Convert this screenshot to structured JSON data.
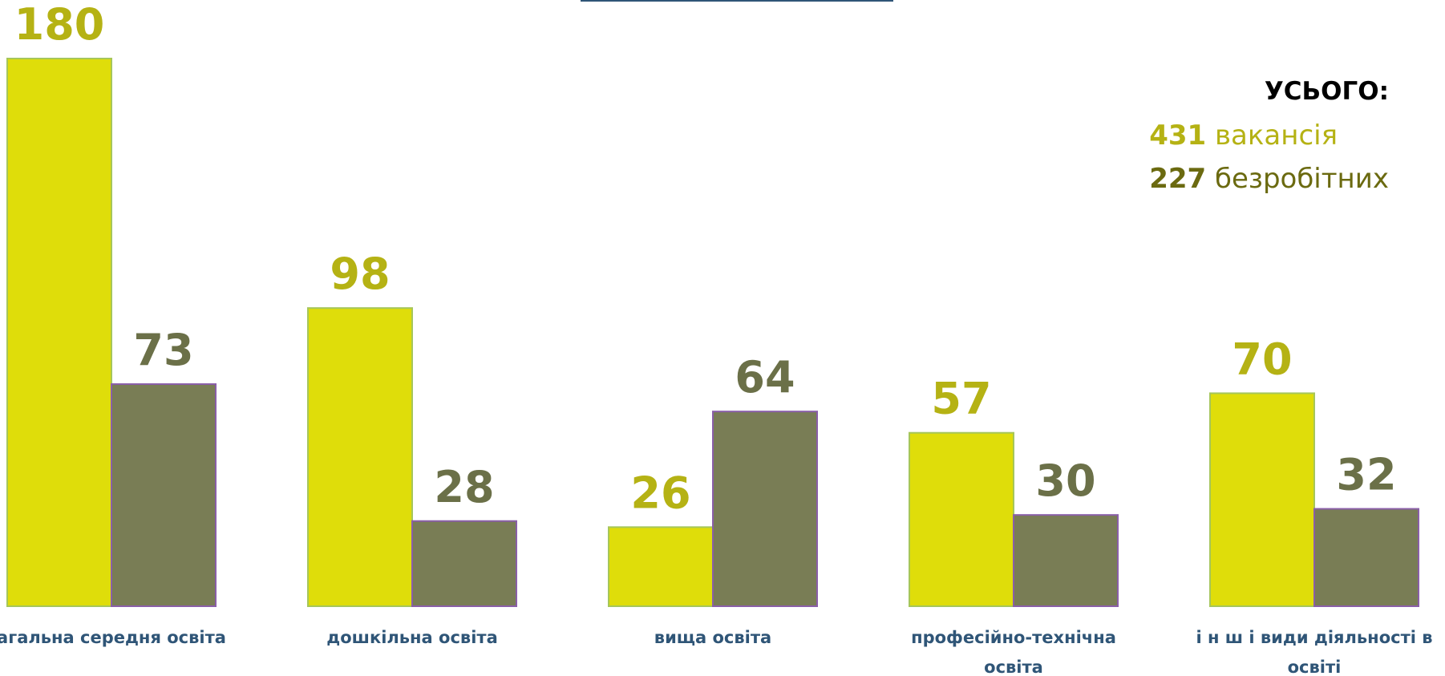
{
  "chart_data": {
    "type": "bar",
    "categories": [
      "агальна середня освіта",
      "дошкільна освіта",
      "вища освіта",
      "професійно-технічна освіта",
      "і н ш і   види діяльності в освіті"
    ],
    "category_lines": [
      [
        "агальна середня освіта"
      ],
      [
        "дошкільна освіта"
      ],
      [
        "вища освіта"
      ],
      [
        "професійно-технічна",
        "освіта"
      ],
      [
        "і н ш і   види діяльності в",
        "освіті"
      ]
    ],
    "series": [
      {
        "values": [
          180,
          98,
          26,
          57,
          70
        ],
        "color": "#dfdd0a",
        "label_color": "#b5b214",
        "stroke": "#a6c65a"
      },
      {
        "values": [
          73,
          28,
          64,
          30,
          32
        ],
        "color": "#797d55",
        "label_color": "#6b7048",
        "stroke": "#8a5fa8"
      }
    ],
    "ylim": [
      0,
      180
    ],
    "grid": false
  },
  "totals": {
    "heading": "УСЬОГО:",
    "vacancies_number": "431",
    "vacancies_label": "вакансія",
    "vacancies_color": "#b5b214",
    "unemployed_number": "227",
    "unemployed_label": "безробітних",
    "unemployed_color": "#6b6a10"
  }
}
